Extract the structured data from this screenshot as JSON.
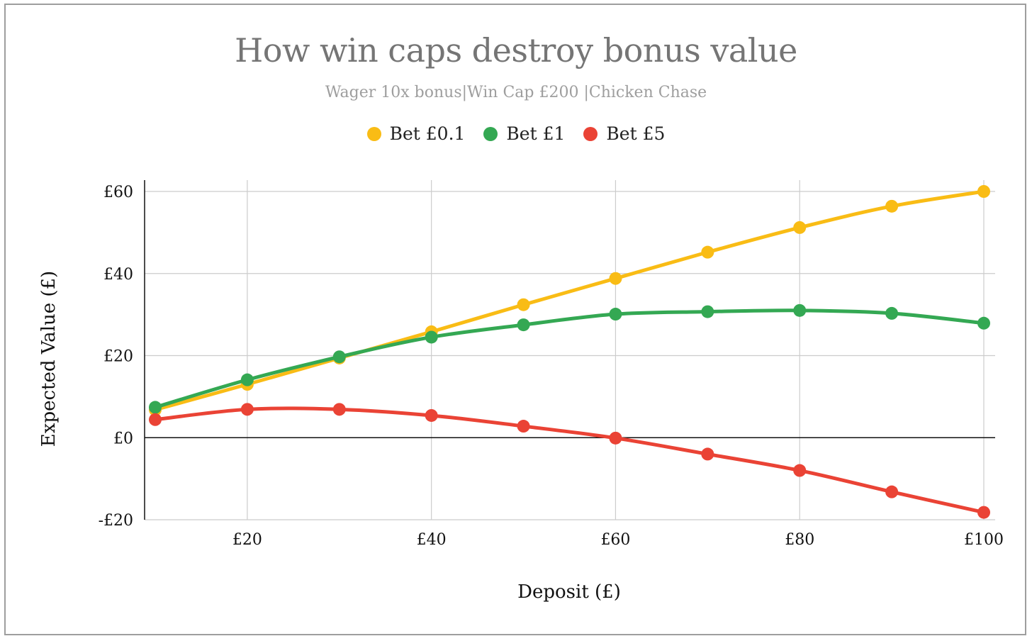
{
  "chart_data": {
    "type": "line",
    "title": "How win caps destroy bonus value",
    "subtitle": "Wager 10x bonus|Win Cap £200 |Chicken Chase",
    "xlabel": "Deposit (£)",
    "ylabel": "Expected Value (£)",
    "x": [
      10,
      20,
      30,
      40,
      50,
      60,
      70,
      80,
      90,
      100
    ],
    "xlim": [
      10,
      100
    ],
    "ylim": [
      -20,
      60
    ],
    "x_ticks": [
      20,
      40,
      60,
      80,
      100
    ],
    "x_tick_labels": [
      "£20",
      "£40",
      "£60",
      "£80",
      "£100"
    ],
    "y_ticks": [
      -20,
      0,
      20,
      40,
      60
    ],
    "y_tick_labels": [
      "-£20",
      "£0",
      "£20",
      "£40",
      "£60"
    ],
    "grid": true,
    "legend_position": "top",
    "series": [
      {
        "name": "Bet £0.1",
        "color": "#F9BC15",
        "values": [
          6.8,
          13.0,
          19.4,
          25.8,
          32.4,
          38.8,
          45.2,
          51.2,
          56.4,
          60.0
        ]
      },
      {
        "name": "Bet £1",
        "color": "#34A853",
        "values": [
          7.4,
          14.1,
          19.7,
          24.5,
          27.5,
          30.1,
          30.7,
          31.0,
          30.3,
          27.9
        ]
      },
      {
        "name": "Bet £5",
        "color": "#EA4335",
        "values": [
          4.4,
          6.9,
          6.9,
          5.4,
          2.8,
          -0.1,
          -4.0,
          -8.0,
          -13.2,
          -18.2
        ]
      }
    ]
  }
}
